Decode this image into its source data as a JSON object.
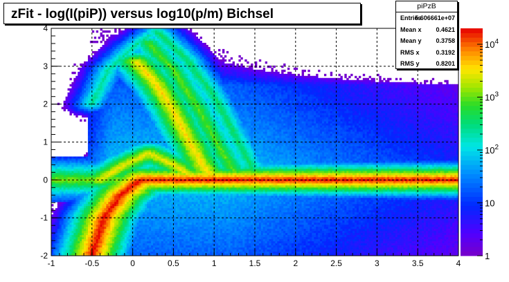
{
  "chart_data": {
    "type": "heatmap",
    "title": "zFit - log(I(piP)) versus log10(p/m) Bichsel",
    "xlim": [
      -1,
      4
    ],
    "ylim": [
      -2,
      4
    ],
    "x_ticks": [
      "-1",
      "-0.5",
      "0",
      "0.5",
      "1",
      "1.5",
      "2",
      "2.5",
      "3",
      "3.5",
      "4"
    ],
    "y_ticks": [
      "-2",
      "-1",
      "0",
      "1",
      "2",
      "3",
      "4"
    ],
    "z_scale": "log",
    "z_range": [
      1,
      20000
    ],
    "z_ticks": [
      "1",
      "10",
      "10^2",
      "10^3",
      "10^4"
    ],
    "grid": true,
    "stats": {
      "name": "piPzB",
      "rows": [
        {
          "label": "Entries",
          "value": "5.606661e+07"
        },
        {
          "label": "Mean x",
          "value": "0.4621"
        },
        {
          "label": "Mean y",
          "value": "0.3758"
        },
        {
          "label": "RMS x",
          "value": "0.3192"
        },
        {
          "label": "RMS y",
          "value": "0.8201"
        }
      ]
    },
    "bands": [
      {
        "points": [
          [
            -0.5,
            -2.0
          ],
          [
            -0.35,
            -1.0
          ],
          [
            -0.15,
            -0.4
          ],
          [
            0.1,
            0.0
          ],
          [
            0.7,
            0.0
          ],
          [
            1.2,
            0.0
          ],
          [
            2.5,
            0.0
          ],
          [
            4.0,
            0.0
          ]
        ],
        "peak": 4.3
      },
      {
        "points": [
          [
            0.05,
            3.1
          ],
          [
            0.3,
            2.5
          ],
          [
            0.5,
            1.8
          ],
          [
            0.7,
            1.0
          ],
          [
            0.85,
            0.4
          ],
          [
            1.0,
            0.0
          ]
        ],
        "peak": 3.6
      },
      {
        "points": [
          [
            0.2,
            3.6
          ],
          [
            0.5,
            2.9
          ],
          [
            0.8,
            1.9
          ],
          [
            1.05,
            0.9
          ],
          [
            1.25,
            0.2
          ]
        ],
        "peak": 3.0
      },
      {
        "points": [
          [
            0.3,
            3.9
          ],
          [
            0.65,
            3.2
          ],
          [
            1.0,
            2.2
          ],
          [
            1.3,
            1.0
          ],
          [
            1.5,
            0.2
          ]
        ],
        "peak": 2.6
      },
      {
        "points": [
          [
            -0.4,
            0.0
          ],
          [
            -0.1,
            0.4
          ],
          [
            0.2,
            0.7
          ],
          [
            0.5,
            0.4
          ],
          [
            0.8,
            0.0
          ]
        ],
        "peak": 3.5
      },
      {
        "points": [
          [
            -0.3,
            -0.6
          ],
          [
            -0.05,
            -0.45
          ],
          [
            0.1,
            -0.3
          ]
        ],
        "peak": 3.4
      },
      {
        "points": [
          [
            -0.5,
            2.0
          ],
          [
            -0.3,
            2.9
          ],
          [
            0.0,
            3.5
          ],
          [
            0.2,
            3.8
          ]
        ],
        "peak": 2.4
      }
    ]
  }
}
